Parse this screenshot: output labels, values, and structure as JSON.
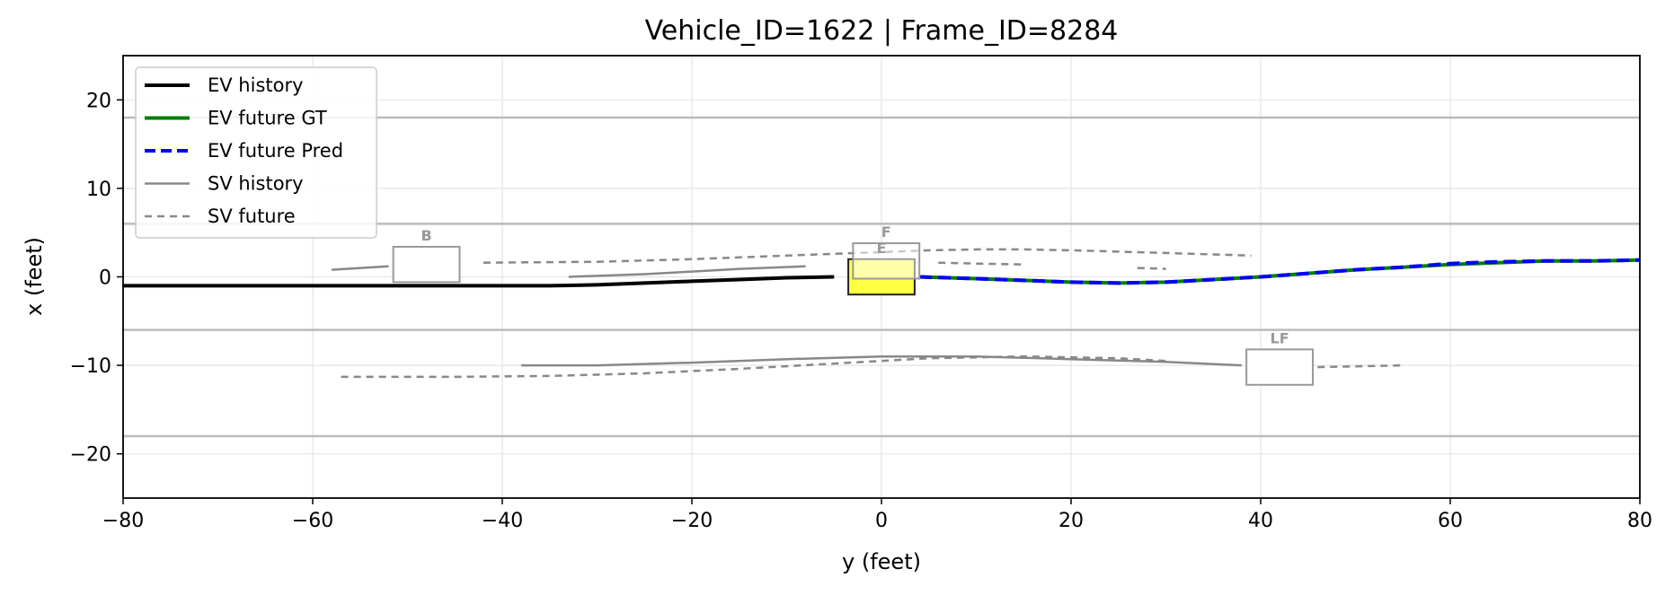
{
  "chart_data": {
    "type": "line",
    "title": "Vehicle_ID=1622  |  Frame_ID=8284",
    "xlabel": "y (feet)",
    "ylabel": "x (feet)",
    "xlim": [
      -80,
      80
    ],
    "ylim": [
      -25,
      25
    ],
    "xticks": [
      -80,
      -60,
      -40,
      -20,
      0,
      20,
      40,
      60,
      80
    ],
    "yticks": [
      -20,
      -10,
      0,
      10,
      20
    ],
    "xtick_labels": [
      "−80",
      "−60",
      "−40",
      "−20",
      "0",
      "20",
      "40",
      "60",
      "80"
    ],
    "ytick_labels": [
      "−20",
      "−10",
      "0",
      "10",
      "20"
    ],
    "grid": true,
    "legend_position": "top-left",
    "legend": [
      {
        "label": "EV history",
        "color": "#000000",
        "style": "solid",
        "width": 4
      },
      {
        "label": "EV future GT",
        "color": "#008000",
        "style": "solid",
        "width": 4
      },
      {
        "label": "EV future Pred",
        "color": "#0000ff",
        "style": "dashed",
        "width": 4
      },
      {
        "label": "SV history",
        "color": "#888888",
        "style": "solid",
        "width": 2.5
      },
      {
        "label": "SV future",
        "color": "#888888",
        "style": "dashed",
        "width": 2.5
      }
    ],
    "lane_lines": [
      18,
      6,
      -6,
      -18
    ],
    "lane_color": "#bbbbbb",
    "series": [
      {
        "name": "EV history",
        "color": "#000000",
        "dash": "",
        "width": 4,
        "x": [
          -80,
          -60,
          -40,
          -35,
          -30,
          -25,
          -20,
          -15,
          -10,
          -5
        ],
        "y": [
          -1.0,
          -1.0,
          -1.0,
          -1.0,
          -0.9,
          -0.7,
          -0.5,
          -0.3,
          -0.1,
          0.0
        ]
      },
      {
        "name": "EV future GT",
        "color": "#008000",
        "dash": "",
        "width": 4,
        "x": [
          4,
          10,
          15,
          20,
          25,
          30,
          35,
          40,
          45,
          50,
          55,
          60,
          65,
          70,
          75,
          80
        ],
        "y": [
          0.0,
          -0.2,
          -0.4,
          -0.6,
          -0.7,
          -0.6,
          -0.3,
          0.0,
          0.4,
          0.8,
          1.1,
          1.4,
          1.6,
          1.8,
          1.8,
          1.9
        ]
      },
      {
        "name": "EV future Pred",
        "color": "#0000ff",
        "dash": "14,7",
        "width": 4,
        "x": [
          4,
          10,
          15,
          20,
          25,
          30,
          35,
          40,
          45,
          50,
          55,
          60,
          65,
          70,
          75,
          80
        ],
        "y": [
          0.0,
          -0.2,
          -0.4,
          -0.6,
          -0.7,
          -0.6,
          -0.3,
          0.0,
          0.4,
          0.8,
          1.1,
          1.5,
          1.7,
          1.8,
          1.8,
          1.9
        ]
      },
      {
        "name": "SV history",
        "color": "#888888",
        "dash": "",
        "width": 2.5,
        "x": [
          -58,
          -52
        ],
        "y": [
          0.8,
          1.2
        ]
      },
      {
        "name": "SV history",
        "color": "#888888",
        "dash": "",
        "width": 2.5,
        "x": [
          -33,
          -25,
          -20,
          -15,
          -8
        ],
        "y": [
          0.0,
          0.3,
          0.6,
          0.9,
          1.2
        ]
      },
      {
        "name": "SV history",
        "color": "#888888",
        "dash": "",
        "width": 2.5,
        "x": [
          -38,
          -30,
          -20,
          -10,
          0,
          10,
          20,
          30,
          38
        ],
        "y": [
          -10.0,
          -10.0,
          -9.7,
          -9.3,
          -9.0,
          -9.0,
          -9.3,
          -9.6,
          -10.0
        ]
      },
      {
        "name": "SV future",
        "color": "#888888",
        "dash": "8,6",
        "width": 2.5,
        "x": [
          -42,
          -30,
          -20,
          -10,
          0,
          5,
          10,
          15,
          20,
          30,
          39
        ],
        "y": [
          1.6,
          1.7,
          2.0,
          2.4,
          2.8,
          3.0,
          3.1,
          3.1,
          3.0,
          2.7,
          2.4
        ]
      },
      {
        "name": "SV future",
        "color": "#888888",
        "dash": "8,6",
        "width": 2.5,
        "x": [
          6,
          10,
          15
        ],
        "y": [
          1.6,
          1.5,
          1.4
        ]
      },
      {
        "name": "SV future",
        "color": "#888888",
        "dash": "8,6",
        "width": 2.5,
        "x": [
          27,
          30
        ],
        "y": [
          1.0,
          0.9
        ]
      },
      {
        "name": "SV future",
        "color": "#888888",
        "dash": "8,6",
        "width": 2.5,
        "x": [
          -57,
          -45,
          -35,
          -25,
          -15,
          -5,
          5,
          15,
          25,
          30
        ],
        "y": [
          -11.3,
          -11.3,
          -11.2,
          -10.9,
          -10.4,
          -9.8,
          -9.2,
          -9.0,
          -9.2,
          -9.5
        ]
      },
      {
        "name": "SV future",
        "color": "#888888",
        "dash": "8,6",
        "width": 2.5,
        "x": [
          46,
          55
        ],
        "y": [
          -10.2,
          -10.0
        ]
      }
    ],
    "vehicles": [
      {
        "label": "E",
        "x0": -3.5,
        "x1": 3.5,
        "y0": -2.0,
        "y1": 2.0,
        "fill": "#ffff44",
        "stroke": "#222222",
        "label_color": "#222222"
      },
      {
        "label": "F",
        "x0": -3.0,
        "x1": 4.0,
        "y0": -0.2,
        "y1": 3.8,
        "fill": "rgba(255,255,255,0.55)",
        "stroke": "#999999",
        "label_color": "#999999"
      },
      {
        "label": "B",
        "x0": -51.5,
        "x1": -44.5,
        "y0": -0.6,
        "y1": 3.4,
        "fill": "#ffffff",
        "stroke": "#999999",
        "label_color": "#999999"
      },
      {
        "label": "LF",
        "x0": 38.5,
        "x1": 45.5,
        "y0": -12.2,
        "y1": -8.2,
        "fill": "#ffffff",
        "stroke": "#999999",
        "label_color": "#999999"
      }
    ]
  }
}
